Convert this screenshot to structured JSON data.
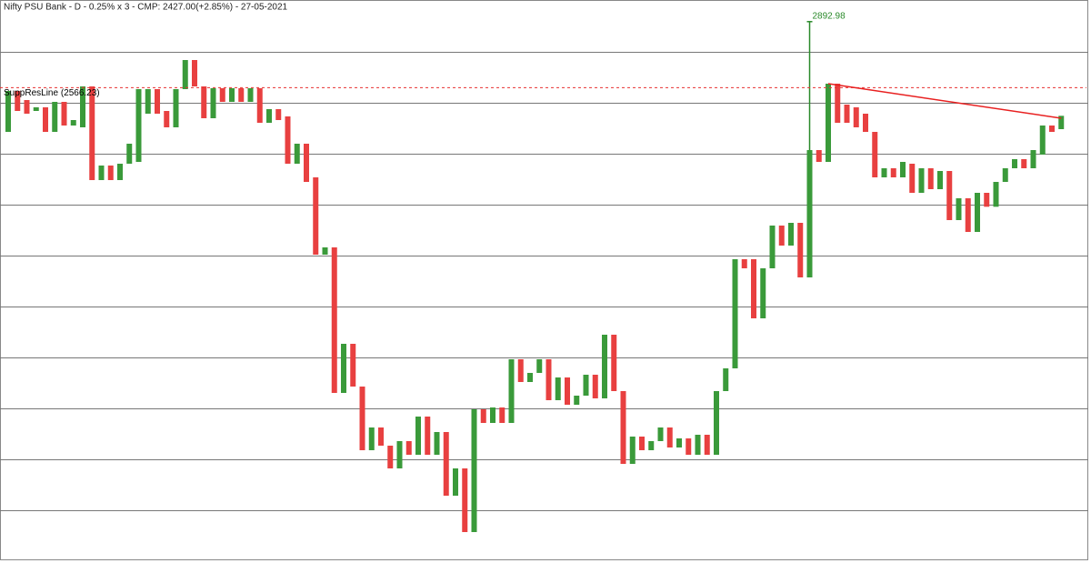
{
  "chart_data": {
    "type": "candlestick",
    "title": "Nifty PSU Bank - D - 0.25% x 3 - CMP: 2427.00(+2.85%) - 27-05-2021",
    "ylim": [
      232.5,
      3000
    ],
    "grid_levels": [
      2743.5,
      2491.5,
      2239.5,
      1987.5,
      1735.5,
      1483.5,
      1231.5,
      979.5,
      727.5,
      475.5
    ],
    "up_color": "#3a9a3a",
    "down_color": "#e84040",
    "support_line": {
      "label": "SuppResLine (2566.23)",
      "value": 2566.23,
      "color": "#e83030"
    },
    "trendline": {
      "start": 2586,
      "end": 2415,
      "color": "#e82020"
    },
    "peak": {
      "value": 2892.98,
      "color": "#2a8a2a"
    },
    "candles": [
      {
        "open": 2347.5,
        "close": 2550
      },
      {
        "open": 2550,
        "close": 2451
      },
      {
        "open": 2505,
        "close": 2437.5
      },
      {
        "open": 2451,
        "close": 2469
      },
      {
        "open": 2469,
        "close": 2347.5
      },
      {
        "open": 2347.5,
        "close": 2496
      },
      {
        "open": 2496,
        "close": 2379
      },
      {
        "open": 2379,
        "close": 2406
      },
      {
        "open": 2370,
        "close": 2572.5
      },
      {
        "open": 2572.5,
        "close": 2109
      },
      {
        "open": 2109,
        "close": 2181
      },
      {
        "open": 2181,
        "close": 2109
      },
      {
        "open": 2109,
        "close": 2190
      },
      {
        "open": 2190,
        "close": 2289
      },
      {
        "open": 2199,
        "close": 2559
      },
      {
        "open": 2437.5,
        "close": 2559
      },
      {
        "open": 2559,
        "close": 2437.5
      },
      {
        "open": 2451,
        "close": 2370
      },
      {
        "open": 2370,
        "close": 2559
      },
      {
        "open": 2559,
        "close": 2703
      },
      {
        "open": 2703,
        "close": 2572.5
      },
      {
        "open": 2572.5,
        "close": 2415
      },
      {
        "open": 2415,
        "close": 2563.5
      },
      {
        "open": 2563.5,
        "close": 2496
      },
      {
        "open": 2496,
        "close": 2563.5
      },
      {
        "open": 2563.5,
        "close": 2496
      },
      {
        "open": 2496,
        "close": 2563.5
      },
      {
        "open": 2563.5,
        "close": 2392.5
      },
      {
        "open": 2392.5,
        "close": 2460
      },
      {
        "open": 2460,
        "close": 2406
      },
      {
        "open": 2424,
        "close": 2190
      },
      {
        "open": 2190,
        "close": 2289
      },
      {
        "open": 2289,
        "close": 2100
      },
      {
        "open": 2122.5,
        "close": 1740
      },
      {
        "open": 1740,
        "close": 1776
      },
      {
        "open": 1776,
        "close": 1056
      },
      {
        "open": 1056,
        "close": 1299
      },
      {
        "open": 1299,
        "close": 1087.5
      },
      {
        "open": 1087.5,
        "close": 772.5
      },
      {
        "open": 772.5,
        "close": 885
      },
      {
        "open": 885,
        "close": 795
      },
      {
        "open": 795,
        "close": 682.5
      },
      {
        "open": 682.5,
        "close": 817.5
      },
      {
        "open": 817.5,
        "close": 750
      },
      {
        "open": 750,
        "close": 939
      },
      {
        "open": 939,
        "close": 750
      },
      {
        "open": 750,
        "close": 862.5
      },
      {
        "open": 862.5,
        "close": 547.5
      },
      {
        "open": 547.5,
        "close": 682.5
      },
      {
        "open": 682.5,
        "close": 367.5
      },
      {
        "open": 367.5,
        "close": 975
      },
      {
        "open": 975,
        "close": 907.5
      },
      {
        "open": 907.5,
        "close": 984
      },
      {
        "open": 984,
        "close": 907.5
      },
      {
        "open": 907.5,
        "close": 1222.5
      },
      {
        "open": 1222.5,
        "close": 1110
      },
      {
        "open": 1110,
        "close": 1155
      },
      {
        "open": 1155,
        "close": 1222.5
      },
      {
        "open": 1222.5,
        "close": 1020
      },
      {
        "open": 1020,
        "close": 1132.5
      },
      {
        "open": 1132.5,
        "close": 997.5
      },
      {
        "open": 997.5,
        "close": 1042.5
      },
      {
        "open": 1042.5,
        "close": 1146
      },
      {
        "open": 1146,
        "close": 1029
      },
      {
        "open": 1029,
        "close": 1344
      },
      {
        "open": 1344,
        "close": 1065
      },
      {
        "open": 1065,
        "close": 705
      },
      {
        "open": 705,
        "close": 840
      },
      {
        "open": 840,
        "close": 772.5
      },
      {
        "open": 772.5,
        "close": 817.5
      },
      {
        "open": 817.5,
        "close": 885
      },
      {
        "open": 885,
        "close": 786
      },
      {
        "open": 786,
        "close": 831
      },
      {
        "open": 831,
        "close": 750
      },
      {
        "open": 750,
        "close": 849
      },
      {
        "open": 849,
        "close": 750
      },
      {
        "open": 750,
        "close": 1065
      },
      {
        "open": 1065,
        "close": 1177.5
      },
      {
        "open": 1177.5,
        "close": 1717.5
      },
      {
        "open": 1717.5,
        "close": 1672.5
      },
      {
        "open": 1717.5,
        "close": 1425
      },
      {
        "open": 1425,
        "close": 1672.5
      },
      {
        "open": 1672.5,
        "close": 1884
      },
      {
        "open": 1884,
        "close": 1785
      },
      {
        "open": 1785,
        "close": 1897.5
      },
      {
        "open": 1897.5,
        "close": 1627.5
      },
      {
        "open": 1627.5,
        "close": 2257.5
      },
      {
        "open": 2257.5,
        "close": 2199
      },
      {
        "open": 2199,
        "close": 2586
      },
      {
        "open": 2586,
        "close": 2392.5
      },
      {
        "open": 2482.5,
        "close": 2392.5
      },
      {
        "open": 2469,
        "close": 2370
      },
      {
        "open": 2437.5,
        "close": 2347.5
      },
      {
        "open": 2347.5,
        "close": 2122.5
      },
      {
        "open": 2122.5,
        "close": 2167.5
      },
      {
        "open": 2167.5,
        "close": 2122.5
      },
      {
        "open": 2122.5,
        "close": 2199
      },
      {
        "open": 2190,
        "close": 2046
      },
      {
        "open": 2046,
        "close": 2167.5
      },
      {
        "open": 2167.5,
        "close": 2064
      },
      {
        "open": 2064,
        "close": 2154
      },
      {
        "open": 2154,
        "close": 1911
      },
      {
        "open": 1911,
        "close": 2019
      },
      {
        "open": 2019,
        "close": 1852.5
      },
      {
        "open": 1852.5,
        "close": 2046
      },
      {
        "open": 2046,
        "close": 1977
      },
      {
        "open": 1977,
        "close": 2100
      },
      {
        "open": 2100,
        "close": 2167.5
      },
      {
        "open": 2167.5,
        "close": 2212.5
      },
      {
        "open": 2212.5,
        "close": 2167.5
      },
      {
        "open": 2167.5,
        "close": 2257.5
      },
      {
        "open": 2235,
        "close": 2379
      },
      {
        "open": 2379,
        "close": 2347.5
      },
      {
        "open": 2361,
        "close": 2427
      }
    ]
  }
}
